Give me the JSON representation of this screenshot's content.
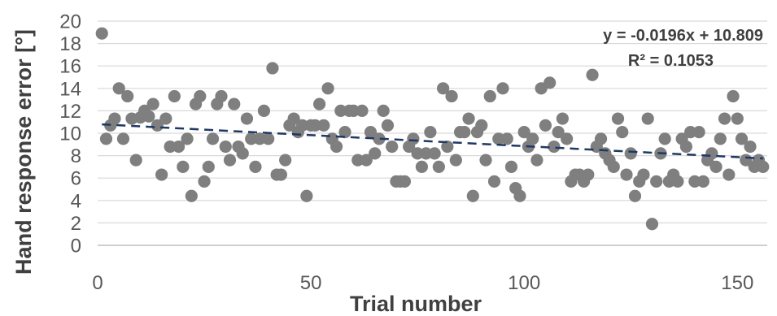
{
  "chart_data": {
    "type": "scatter",
    "xlabel": "Trial number",
    "ylabel": "Hand response error [°]",
    "xlim": [
      0,
      157
    ],
    "ylim": [
      0,
      20
    ],
    "xticks": [
      0,
      50,
      100,
      150
    ],
    "yticks": [
      0,
      2,
      4,
      6,
      8,
      10,
      12,
      14,
      16,
      18,
      20
    ],
    "grid": "horizontal",
    "trendline": {
      "slope": -0.0196,
      "intercept": 10.809,
      "equation_label": "y = -0.0196x + 10.809",
      "r2_label": "R² = 0.1053",
      "style": "dashed",
      "color": "#1f3864"
    },
    "marker_color": "#7f7f7f",
    "points": [
      [
        1,
        18.9
      ],
      [
        2,
        9.5
      ],
      [
        3,
        10.7
      ],
      [
        4,
        11.3
      ],
      [
        5,
        14.0
      ],
      [
        6,
        9.5
      ],
      [
        7,
        13.3
      ],
      [
        8,
        11.3
      ],
      [
        9,
        7.6
      ],
      [
        10,
        11.4
      ],
      [
        11,
        12.0
      ],
      [
        12,
        11.5
      ],
      [
        13,
        12.6
      ],
      [
        14,
        10.7
      ],
      [
        15,
        6.3
      ],
      [
        16,
        11.3
      ],
      [
        17,
        8.8
      ],
      [
        18,
        13.3
      ],
      [
        19,
        8.8
      ],
      [
        20,
        7.0
      ],
      [
        21,
        9.5
      ],
      [
        22,
        4.4
      ],
      [
        23,
        12.6
      ],
      [
        24,
        13.3
      ],
      [
        25,
        5.7
      ],
      [
        26,
        7.0
      ],
      [
        27,
        9.5
      ],
      [
        28,
        12.6
      ],
      [
        29,
        13.3
      ],
      [
        30,
        8.8
      ],
      [
        31,
        7.6
      ],
      [
        32,
        12.6
      ],
      [
        33,
        8.8
      ],
      [
        34,
        8.2
      ],
      [
        35,
        11.3
      ],
      [
        36,
        9.5
      ],
      [
        37,
        7.0
      ],
      [
        38,
        9.5
      ],
      [
        39,
        12.0
      ],
      [
        40,
        9.5
      ],
      [
        41,
        15.8
      ],
      [
        42,
        6.3
      ],
      [
        43,
        6.3
      ],
      [
        44,
        7.6
      ],
      [
        45,
        10.7
      ],
      [
        46,
        11.3
      ],
      [
        47,
        10.1
      ],
      [
        48,
        10.7
      ],
      [
        49,
        4.4
      ],
      [
        50,
        10.7
      ],
      [
        51,
        10.7
      ],
      [
        52,
        12.6
      ],
      [
        53,
        10.7
      ],
      [
        54,
        14.0
      ],
      [
        55,
        9.5
      ],
      [
        56,
        8.8
      ],
      [
        57,
        12.0
      ],
      [
        58,
        10.1
      ],
      [
        59,
        12.0
      ],
      [
        60,
        12.0
      ],
      [
        61,
        7.6
      ],
      [
        62,
        12.0
      ],
      [
        63,
        7.6
      ],
      [
        64,
        10.1
      ],
      [
        65,
        8.2
      ],
      [
        66,
        9.5
      ],
      [
        67,
        12.0
      ],
      [
        68,
        10.7
      ],
      [
        69,
        8.8
      ],
      [
        70,
        5.7
      ],
      [
        71,
        5.7
      ],
      [
        72,
        5.7
      ],
      [
        73,
        8.8
      ],
      [
        74,
        9.5
      ],
      [
        75,
        8.2
      ],
      [
        76,
        7.0
      ],
      [
        77,
        8.2
      ],
      [
        78,
        10.1
      ],
      [
        79,
        8.2
      ],
      [
        80,
        7.0
      ],
      [
        81,
        14.0
      ],
      [
        82,
        8.8
      ],
      [
        83,
        13.3
      ],
      [
        84,
        7.6
      ],
      [
        85,
        10.1
      ],
      [
        86,
        10.1
      ],
      [
        87,
        11.3
      ],
      [
        88,
        4.4
      ],
      [
        89,
        10.1
      ],
      [
        90,
        10.7
      ],
      [
        91,
        7.6
      ],
      [
        92,
        13.3
      ],
      [
        93,
        5.7
      ],
      [
        94,
        9.5
      ],
      [
        95,
        14.0
      ],
      [
        96,
        9.5
      ],
      [
        97,
        7.0
      ],
      [
        98,
        5.1
      ],
      [
        99,
        4.4
      ],
      [
        100,
        10.1
      ],
      [
        101,
        8.8
      ],
      [
        102,
        9.5
      ],
      [
        103,
        7.6
      ],
      [
        104,
        14.0
      ],
      [
        105,
        10.7
      ],
      [
        106,
        14.5
      ],
      [
        107,
        8.8
      ],
      [
        108,
        10.1
      ],
      [
        109,
        11.3
      ],
      [
        110,
        9.5
      ],
      [
        111,
        5.7
      ],
      [
        112,
        6.3
      ],
      [
        113,
        6.3
      ],
      [
        114,
        5.7
      ],
      [
        115,
        6.3
      ],
      [
        116,
        15.2
      ],
      [
        117,
        8.8
      ],
      [
        118,
        9.5
      ],
      [
        119,
        8.2
      ],
      [
        120,
        7.6
      ],
      [
        121,
        7.0
      ],
      [
        122,
        11.3
      ],
      [
        123,
        10.1
      ],
      [
        124,
        6.3
      ],
      [
        125,
        8.2
      ],
      [
        126,
        4.4
      ],
      [
        127,
        5.7
      ],
      [
        128,
        6.3
      ],
      [
        129,
        11.3
      ],
      [
        130,
        1.9
      ],
      [
        131,
        5.7
      ],
      [
        132,
        8.2
      ],
      [
        133,
        9.5
      ],
      [
        134,
        5.7
      ],
      [
        135,
        6.3
      ],
      [
        136,
        5.7
      ],
      [
        137,
        9.5
      ],
      [
        138,
        8.8
      ],
      [
        139,
        10.1
      ],
      [
        140,
        5.7
      ],
      [
        141,
        10.1
      ],
      [
        142,
        5.7
      ],
      [
        143,
        7.6
      ],
      [
        144,
        8.2
      ],
      [
        145,
        7.0
      ],
      [
        146,
        9.5
      ],
      [
        147,
        11.3
      ],
      [
        148,
        6.3
      ],
      [
        149,
        13.3
      ],
      [
        150,
        11.3
      ],
      [
        151,
        9.5
      ],
      [
        152,
        7.6
      ],
      [
        153,
        8.8
      ],
      [
        154,
        7.0
      ],
      [
        155,
        7.6
      ],
      [
        156,
        7.0
      ]
    ]
  }
}
